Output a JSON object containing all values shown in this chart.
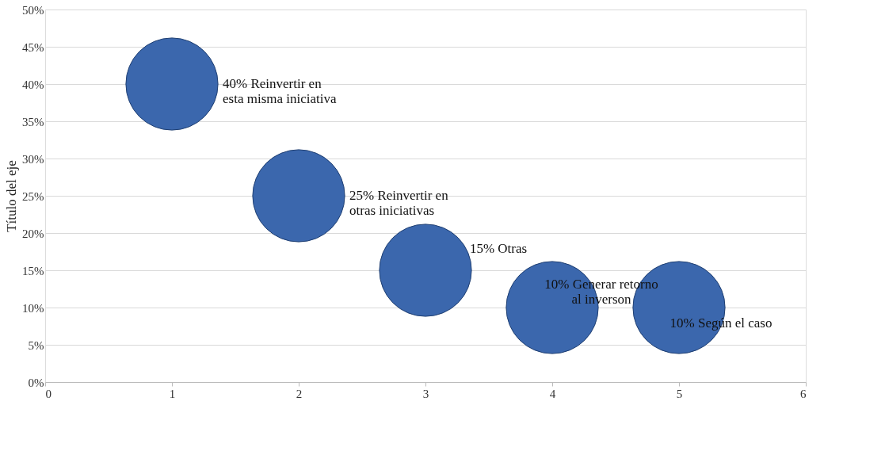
{
  "chart_data": {
    "type": "bubble",
    "ylabel": "Título del eje",
    "x": [
      1,
      2,
      3,
      4,
      5
    ],
    "series": [
      {
        "color": "#3b67ad",
        "values": [
          40,
          25,
          15,
          10,
          10
        ],
        "sizes": [
          1,
          1,
          1,
          1,
          1
        ],
        "value_labels": [
          "40% Reinvertir en\nesta misma iniciativa",
          "25% Reinvertir en\notras iniciativas",
          "15% Otras",
          "10% Generar retorno\nal inverson",
          "10% Según el caso"
        ]
      }
    ],
    "xlim": [
      0,
      6
    ],
    "xticks": [
      0,
      1,
      2,
      3,
      4,
      5,
      6
    ],
    "ylim": [
      0,
      50
    ],
    "yticks": [
      {
        "value": 0,
        "label": "0%"
      },
      {
        "value": 5,
        "label": "5%"
      },
      {
        "value": 10,
        "label": "10%"
      },
      {
        "value": 15,
        "label": "15%"
      },
      {
        "value": 20,
        "label": "20%"
      },
      {
        "value": 25,
        "label": "25%"
      },
      {
        "value": 30,
        "label": "30%"
      },
      {
        "value": 35,
        "label": "35%"
      },
      {
        "value": 40,
        "label": "40%"
      },
      {
        "value": 45,
        "label": "45%"
      },
      {
        "value": 50,
        "label": "50%"
      }
    ],
    "grid": "y"
  }
}
